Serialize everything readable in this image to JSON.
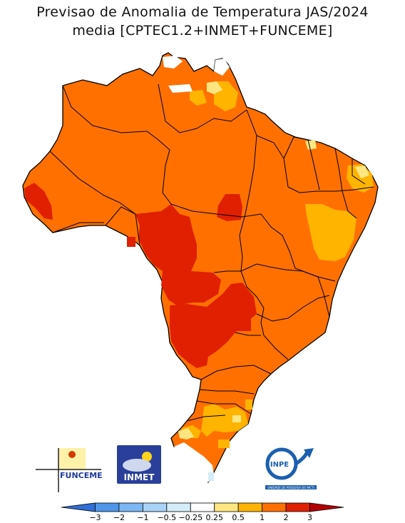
{
  "title_line1": "Previsao de Anomalia de Temperatura JAS/2024",
  "title_line2": "media [CPTEC1.2+INMET+FUNCEME]",
  "logos": {
    "funceme": "FUNCEME",
    "inmet": "INMET",
    "inpe": "INPE",
    "inpe_sub": "UNIDADE DE PESQUISA DO MCTI"
  },
  "legend": {
    "labels": [
      "-3",
      "-2",
      "-1",
      "-0.5",
      "-0.25",
      "0.25",
      "0.5",
      "1",
      "2",
      "3"
    ],
    "colors": [
      "#2f6fd6",
      "#4f95ea",
      "#7cb6f4",
      "#a9d3f8",
      "#d4ecf8",
      "#ffffff",
      "#ffe680",
      "#ffb400",
      "#ff7000",
      "#e02000",
      "#b40000"
    ]
  },
  "anomaly_colors": {
    "high": "#e02000",
    "moderate": "#ff7000",
    "low": "#ffb400",
    "slight": "#ffe680",
    "neutral": "#ffffff"
  }
}
